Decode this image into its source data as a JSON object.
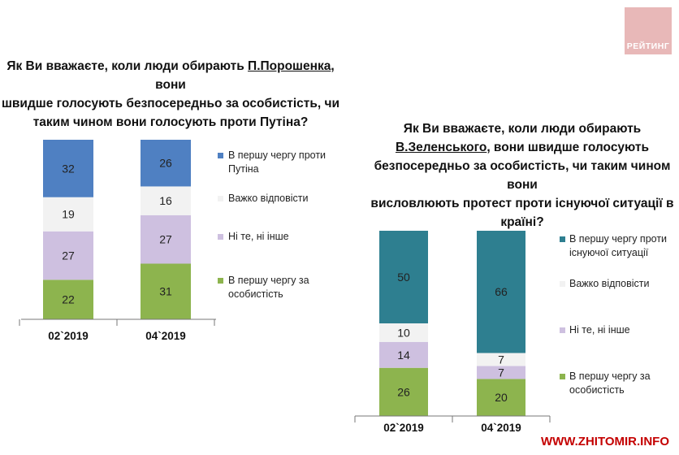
{
  "branding": {
    "logo_text": "РЕЙТИНГ",
    "watermark": "WWW.ZHITOMIR.INFO"
  },
  "chart1": {
    "title_line1_pre": "Як Ви вважаєте, коли люди обирають ",
    "title_line1_name": "П.Порошенка",
    "title_line1_post": ", вони",
    "title_line2": "швидше голосують безпосередньо за особистість, чи",
    "title_line3": "таким чином вони голосують проти Путіна?"
  },
  "chart2": {
    "title_line1": "Як Ви вважаєте, коли люди обирають",
    "title_line2_name": "В.Зеленського",
    "title_line2_post": ", вони швидше голосують",
    "title_line3": "безпосередньо за особистість, чи таким чином вони",
    "title_line4": "висловлюють протест проти існуючої ситуації в",
    "title_line5": "країні?"
  },
  "chart_data": [
    {
      "type": "bar",
      "stacked": true,
      "title": "Як Ви вважаєте, коли люди обирають П.Порошенка, вони швидше голосують безпосередньо за особистість, чи таким чином вони голосують проти Путіна?",
      "categories": [
        "02`2019",
        "04`2019"
      ],
      "series": [
        {
          "name": "В першу чергу за особистість",
          "color": "#8db44e",
          "values": [
            22,
            31
          ]
        },
        {
          "name": "Ні те, ні інше",
          "color": "#cec0e0",
          "values": [
            27,
            27
          ]
        },
        {
          "name": "Важко відповісти",
          "color": "#f2f2f2",
          "values": [
            19,
            16
          ]
        },
        {
          "name": "В першу чергу проти Путіна",
          "color": "#4f80c2",
          "values": [
            32,
            26
          ]
        }
      ],
      "legend": [
        {
          "line1": "В першу чергу проти",
          "line2": "Путіна",
          "color": "#4f80c2"
        },
        {
          "line1": "Важко відповісти",
          "line2": "",
          "color": "#f2f2f2"
        },
        {
          "line1": "Ні те, ні інше",
          "line2": "",
          "color": "#cec0e0"
        },
        {
          "line1": "В першу чергу за",
          "line2": "особистість",
          "color": "#8db44e"
        }
      ],
      "ylim": [
        0,
        100
      ]
    },
    {
      "type": "bar",
      "stacked": true,
      "title": "Як Ви вважаєте, коли люди обирають В.Зеленського, вони швидше голосують безпосередньо за особистість, чи таким чином вони висловлюють протест проти існуючої ситуації в країні?",
      "categories": [
        "02`2019",
        "04`2019"
      ],
      "series": [
        {
          "name": "В першу чергу за особистість",
          "color": "#8db44e",
          "values": [
            26,
            20
          ]
        },
        {
          "name": "Ні те, ні інше",
          "color": "#cec0e0",
          "values": [
            14,
            7
          ]
        },
        {
          "name": "Важко відповісти",
          "color": "#f2f2f2",
          "values": [
            10,
            7
          ]
        },
        {
          "name": "В першу чергу проти існуючої ситуації",
          "color": "#2e7f90",
          "values": [
            50,
            66
          ]
        }
      ],
      "legend": [
        {
          "line1": "В першу чергу проти",
          "line2": "існуючої ситуації",
          "color": "#2e7f90"
        },
        {
          "line1": "Важко відповісти",
          "line2": "",
          "color": "#f2f2f2"
        },
        {
          "line1": "Ні те, ні інше",
          "line2": "",
          "color": "#cec0e0"
        },
        {
          "line1": "В першу чергу за",
          "line2": "особистість",
          "color": "#8db44e"
        }
      ],
      "ylim": [
        0,
        100
      ]
    }
  ]
}
